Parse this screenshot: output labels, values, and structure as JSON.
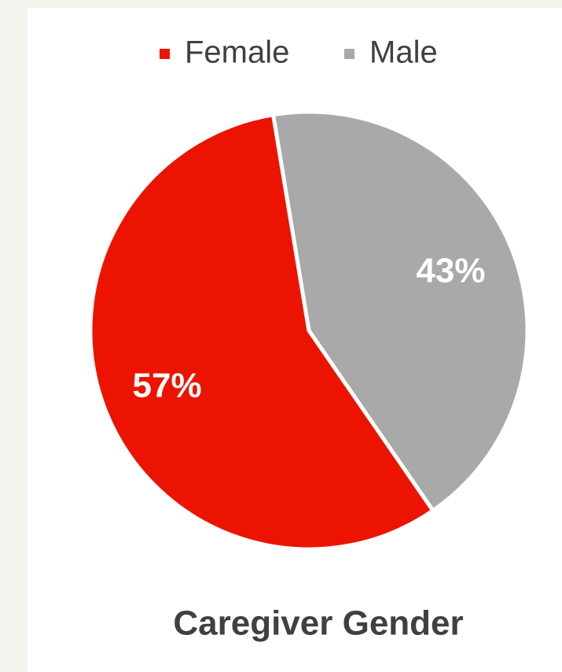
{
  "chart_data": {
    "type": "pie",
    "title": "Caregiver Gender",
    "categories": [
      "Female",
      "Male"
    ],
    "values": [
      57,
      43
    ],
    "value_labels": [
      "57%",
      "43%"
    ],
    "colors": [
      "#ec1400",
      "#a9a9a9"
    ],
    "legend": "top"
  }
}
